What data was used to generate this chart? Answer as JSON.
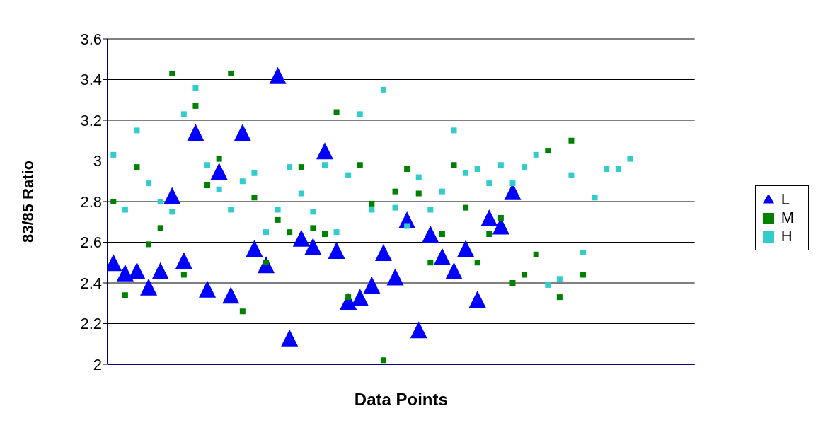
{
  "chart_data": {
    "type": "scatter",
    "xlabel": "Data Points",
    "ylabel": "83/85 Ratio",
    "ylim": [
      2,
      3.6
    ],
    "yticks": [
      2,
      2.2,
      2.4,
      2.6,
      2.8,
      3,
      3.2,
      3.4,
      3.6
    ],
    "grid": "y",
    "legend": "right",
    "tick_labels": "y",
    "categories": [
      null,
      null,
      null,
      null,
      null,
      null,
      null,
      null,
      null,
      null,
      null,
      null,
      null,
      null,
      null,
      null,
      null,
      null,
      null,
      null,
      null,
      null,
      null,
      null,
      null,
      null,
      null,
      null,
      null,
      null,
      null,
      null,
      null,
      null,
      null,
      null,
      null,
      null,
      null,
      null,
      null,
      null,
      null,
      null,
      null,
      null,
      null,
      null,
      null,
      null
    ],
    "series": [
      {
        "name": "L",
        "color": "#0000ff",
        "marker": "triangle",
        "values": [
          2.5,
          2.45,
          2.46,
          2.38,
          2.46,
          2.83,
          2.51,
          3.14,
          2.37,
          2.95,
          2.34,
          3.14,
          2.57,
          2.49,
          3.42,
          2.13,
          2.62,
          2.58,
          3.05,
          2.56,
          2.31,
          2.33,
          2.39,
          2.55,
          2.43,
          2.71,
          2.17,
          2.64,
          2.53,
          2.46,
          2.57,
          2.32,
          2.72,
          2.68,
          2.85,
          null,
          null,
          null,
          null,
          null,
          null,
          null,
          null,
          null,
          null,
          null,
          null,
          null,
          null,
          null
        ]
      },
      {
        "name": "M",
        "color": "#008000",
        "marker": "square",
        "values": [
          2.8,
          2.34,
          2.97,
          2.59,
          2.67,
          3.43,
          2.44,
          3.27,
          2.88,
          3.01,
          3.43,
          2.26,
          2.82,
          2.5,
          2.71,
          2.65,
          2.97,
          2.67,
          2.64,
          3.24,
          2.33,
          2.98,
          2.79,
          2.02,
          2.85,
          2.96,
          2.84,
          2.5,
          2.64,
          2.98,
          2.77,
          2.5,
          2.64,
          2.72,
          2.4,
          2.44,
          2.54,
          3.05,
          2.33,
          3.1,
          2.44,
          null,
          null,
          null,
          null,
          null,
          null,
          null,
          null,
          null
        ]
      },
      {
        "name": "H",
        "color": "#33cccc",
        "marker": "square",
        "values": [
          3.03,
          2.76,
          3.15,
          2.89,
          2.8,
          2.75,
          3.23,
          3.36,
          2.98,
          2.86,
          2.76,
          2.9,
          2.94,
          2.65,
          2.76,
          2.97,
          2.84,
          2.75,
          2.98,
          2.65,
          2.93,
          3.23,
          2.76,
          3.35,
          2.77,
          2.68,
          2.92,
          2.76,
          2.85,
          3.15,
          2.94,
          2.96,
          2.89,
          2.98,
          2.89,
          2.97,
          3.03,
          2.39,
          2.42,
          2.93,
          2.55,
          2.82,
          2.96,
          2.96,
          3.01,
          null,
          null,
          null,
          null,
          null
        ]
      }
    ]
  }
}
